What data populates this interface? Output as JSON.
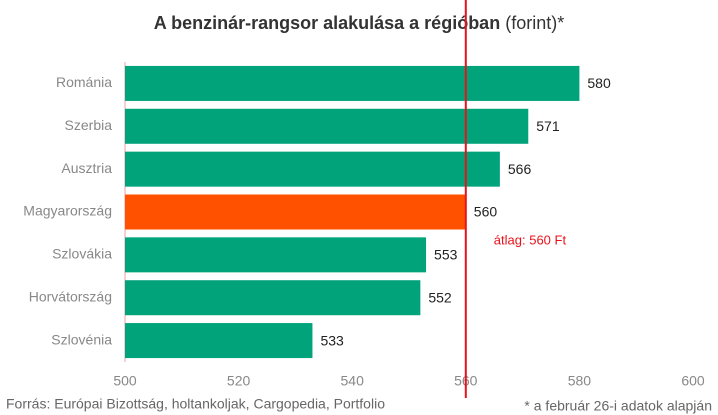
{
  "chart_data": {
    "type": "barh",
    "title": "A benzinár-rangsor alakulása a régióban",
    "title_note": "(forint)*",
    "categories": [
      "Románia",
      "Szerbia",
      "Ausztria",
      "Magyarország",
      "Szlovákia",
      "Horvátország",
      "Szlovénia"
    ],
    "values": [
      580,
      571,
      566,
      560,
      553,
      552,
      533
    ],
    "colors": [
      "#00a37a",
      "#00a37a",
      "#00a37a",
      "#ff5100",
      "#00a37a",
      "#00a37a",
      "#00a37a"
    ],
    "xlim": [
      500,
      600
    ],
    "xticks": [
      500,
      520,
      540,
      560,
      580,
      600
    ],
    "grid": false,
    "reference_line": {
      "value": 560,
      "label": "átlag: 560 Ft",
      "color": "#e8121b"
    },
    "source": "Forrás: Európai Bizottság, holtankoljak, Cargopedia, Portfolio",
    "footnote": "* a február 26-i adatok alapján"
  }
}
